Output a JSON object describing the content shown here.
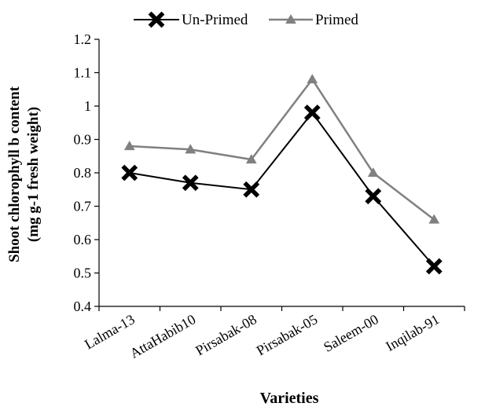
{
  "chart_data": {
    "type": "line",
    "categories": [
      "Lalma-13",
      "AttaHabib10",
      "Pirsabak-08",
      "Pirsabak-05",
      "Saleem-00",
      "Inqilab-91"
    ],
    "series": [
      {
        "name": "Un-Primed",
        "values": [
          0.8,
          0.77,
          0.75,
          0.98,
          0.73,
          0.52
        ],
        "color": "#000000",
        "marker": "x-cross"
      },
      {
        "name": "Primed",
        "values": [
          0.88,
          0.87,
          0.84,
          1.08,
          0.8,
          0.66
        ],
        "color": "#808080",
        "marker": "triangle"
      }
    ],
    "title": "",
    "xlabel": "Varieties",
    "ylabel_line1": "Shoot chlorophyll b content",
    "ylabel_line2": "(mg g-1 fresh weight)",
    "ylim": [
      0.4,
      1.2
    ],
    "yticks": [
      "0.4",
      "0.5",
      "0.6",
      "0.7",
      "0.8",
      "0.9",
      "1",
      "1.1",
      "1.2"
    ],
    "grid": false,
    "legend_position": "top"
  }
}
